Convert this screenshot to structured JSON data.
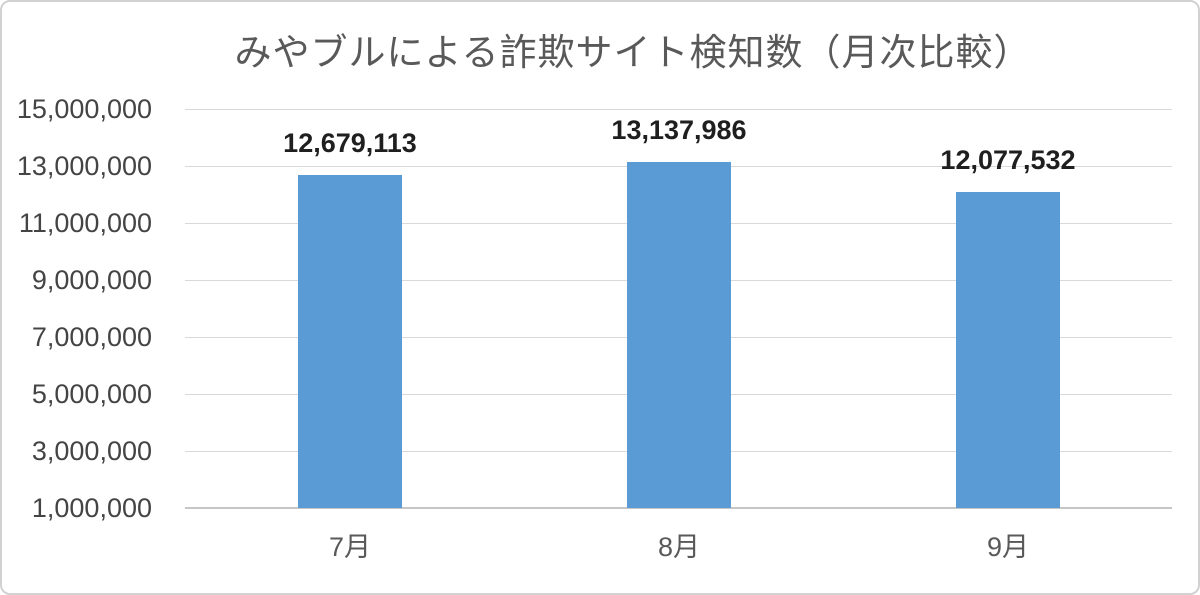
{
  "frame": {
    "background": "#ffffff",
    "border_color": "#d2d2d2"
  },
  "chart_data": {
    "type": "bar",
    "title": "みやブルによる詐欺サイト検知数（月次比較）",
    "categories": [
      "7月",
      "8月",
      "9月"
    ],
    "values": [
      12679113,
      13137986,
      12077532
    ],
    "data_labels": [
      "12,679,113",
      "13,137,986",
      "12,077,532"
    ],
    "xlabel": "",
    "ylabel": "",
    "ylim": [
      1000000,
      15000000
    ],
    "ytick_step": 2000000,
    "ytick_labels_top_to_bottom": [
      "15,000,000",
      "13,000,000",
      "11,000,000",
      "9,000,000",
      "7,000,000",
      "5,000,000",
      "3,000,000",
      "1,000,000"
    ],
    "grid": true,
    "legend": "none",
    "colors": {
      "bar": "#5b9bd5",
      "title": "#595959",
      "tick_label": "#444444",
      "category_label": "#595959",
      "data_label": "#1f1f1f",
      "gridline": "#d9d9d9",
      "axis_line": "#c6c6c6"
    }
  }
}
